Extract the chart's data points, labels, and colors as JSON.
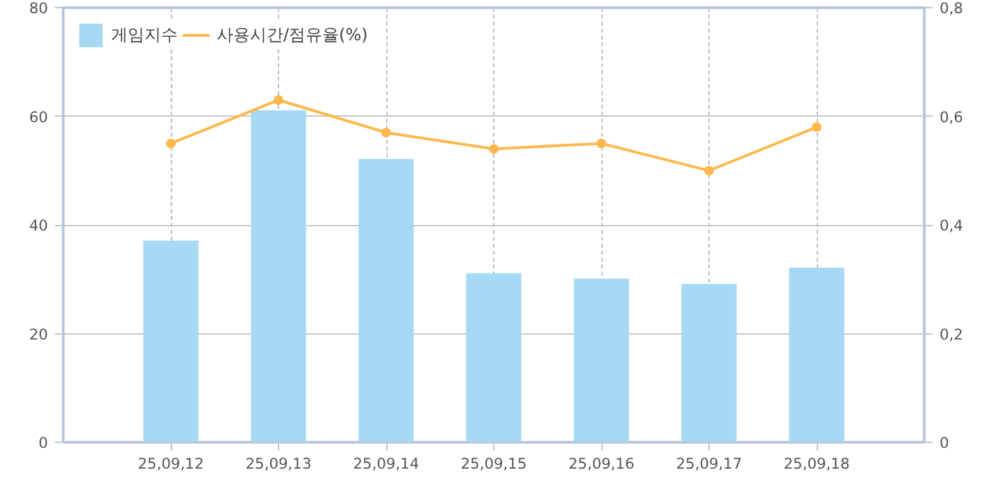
{
  "chart_data": {
    "type": "bar",
    "categories": [
      "25,09,12",
      "25,09,13",
      "25,09,14",
      "25,09,15",
      "25,09,16",
      "25,09,17",
      "25,09,18"
    ],
    "series": [
      {
        "name": "게임지수",
        "color": "#a6daf4",
        "values": [
          37,
          61,
          52,
          31,
          30,
          29,
          32
        ]
      },
      {
        "name": "사용시간/점유율(%)",
        "type": "line",
        "axis": "y2",
        "color": "#ffb84d",
        "values": [
          0.55,
          0.63,
          0.57,
          0.54,
          0.55,
          0.5,
          0.58
        ]
      }
    ],
    "ylim": [
      0,
      80
    ],
    "yticks": [
      0,
      20,
      40,
      60,
      80
    ],
    "y2lim": [
      0,
      0.8
    ],
    "y2ticks": [
      {
        "value": 0,
        "label": "0"
      },
      {
        "value": 0.2,
        "label": "0,2"
      },
      {
        "value": 0.4,
        "label": "0,4"
      },
      {
        "value": 0.6,
        "label": "0,6"
      },
      {
        "value": 0.8,
        "label": "0,8"
      }
    ],
    "grid": true,
    "legend": "top left",
    "marker": "circle",
    "line_style": "solid"
  }
}
